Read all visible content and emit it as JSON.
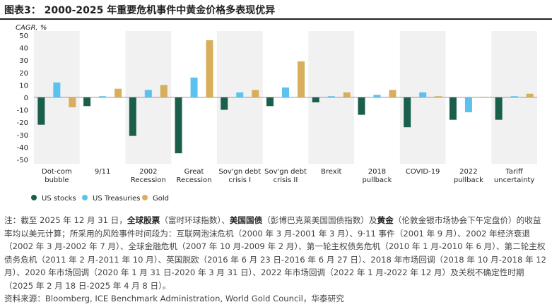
{
  "title": "图表3： 2000-2025 年重要危机事件中黄金价格多表现优异",
  "chart_data": {
    "type": "bar",
    "ylabel": "CAGR, %",
    "ylim": [
      -50,
      50
    ],
    "yticks": [
      50,
      40,
      30,
      20,
      10,
      0,
      -10,
      -20,
      -30,
      -40,
      -50
    ],
    "grid": false,
    "legend_position": "bottom-left",
    "categories": [
      [
        "Dot-com",
        "bubble"
      ],
      [
        "9/11"
      ],
      [
        "2002",
        "Recession"
      ],
      [
        "Great",
        "Recession"
      ],
      [
        "Sov'gn debt",
        "crisis I"
      ],
      [
        "Sov'gn debt",
        "crisis II"
      ],
      [
        "Brexit"
      ],
      [
        "2018",
        "pullback"
      ],
      [
        "COVID-19"
      ],
      [
        "2022",
        "pullback"
      ],
      [
        "Tariff",
        "uncertainty"
      ]
    ],
    "series": [
      {
        "name": "US stocks",
        "color": "#1a5e4c",
        "values": [
          -22,
          -7,
          -31,
          -45,
          -10,
          -7,
          -4,
          -14,
          -24,
          -18,
          -18
        ]
      },
      {
        "name": "US Treasuries",
        "color": "#5bc2ee",
        "values": [
          12,
          1,
          6,
          16,
          4,
          8,
          1,
          2,
          4,
          -12,
          1
        ]
      },
      {
        "name": "Gold",
        "color": "#d8ae5c",
        "values": [
          -8,
          7,
          10,
          46,
          6,
          29,
          4,
          6,
          1,
          0.5,
          3
        ]
      }
    ]
  },
  "note": {
    "prefix": "注：截至 2025 年 12 月 31 日，",
    "stocks_bold": "全球股票",
    "t1": "（富时环球指数）、",
    "bonds_bold": "美国国债",
    "t2": "（彭博巴克莱美国国债指数）及",
    "gold_bold": "黄金",
    "t3": "（伦敦金银市场协会下午定盘价）的收益率均以美元计算；所采用的风险事件时间段为：互联网泡沫危机（2000 年 3 月-2001 年 3 月）、9·11 事件（2001 年 9 月）、2002 年经济衰退（2002 年 3 月-2002 年 7 月）、全球金融危机（2007 年 10 月-2009 年 2 月）、第一轮主权债务危机（2010 年 1 月-2010 年 6 月）、第二轮主权债务危机（2011 年 2 月-2011 年 10 月）、英国脱欧（2016 年 6 月 23 日-2016 年 6 月 27 日）、2018 年市场回调（2018 年 10 月-2018 年 12 月）、2020 年市场回调（2020 年 1 月 31 日-2020 年 3 月 31 日）、2022 年市场回调（2022 年 1 月-2022 年 12 月）及关税不确定性时期（2025 年 2 月 18 日-2025 年 4 月 8 日）。"
  },
  "source": "资料来源：Bloomberg, ICE Benchmark Administration, World Gold Council，华泰研究"
}
